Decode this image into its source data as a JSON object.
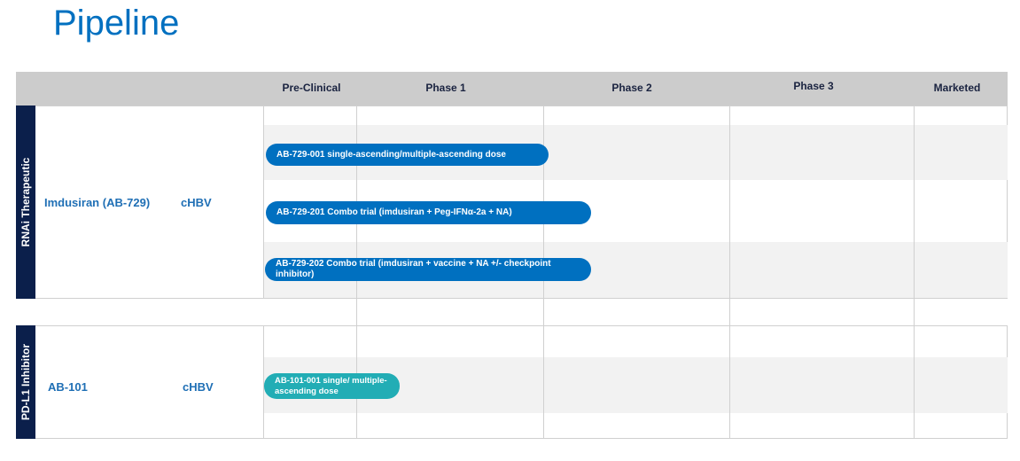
{
  "title": "Pipeline",
  "header": {
    "columns": [
      "Pre-Clinical",
      "Phase 1",
      "Phase 2",
      "Phase 3",
      "Marketed"
    ]
  },
  "colors": {
    "title": "#0070c0",
    "bar_blue": "#0070c0",
    "bar_teal": "#22adb5",
    "sidebar": "#0b1f4b"
  },
  "sections": [
    {
      "category": "RNAi Therapeutic",
      "drug": "Imdusiran (AB-729)",
      "indication": "cHBV",
      "trials": [
        "AB-729-001 single-ascending/multiple-ascending dose",
        "AB-729-201 Combo trial (imdusiran + Peg-IFNα-2a + NA)",
        "AB-729-202 Combo trial (imdusiran +  vaccine + NA +/- checkpoint inhibitor)"
      ]
    },
    {
      "category": "PD-L1 Inhibitor",
      "drug": "AB-101",
      "indication": "cHBV",
      "trials": [
        "AB-101-001 single/ multiple-ascending dose"
      ]
    }
  ]
}
